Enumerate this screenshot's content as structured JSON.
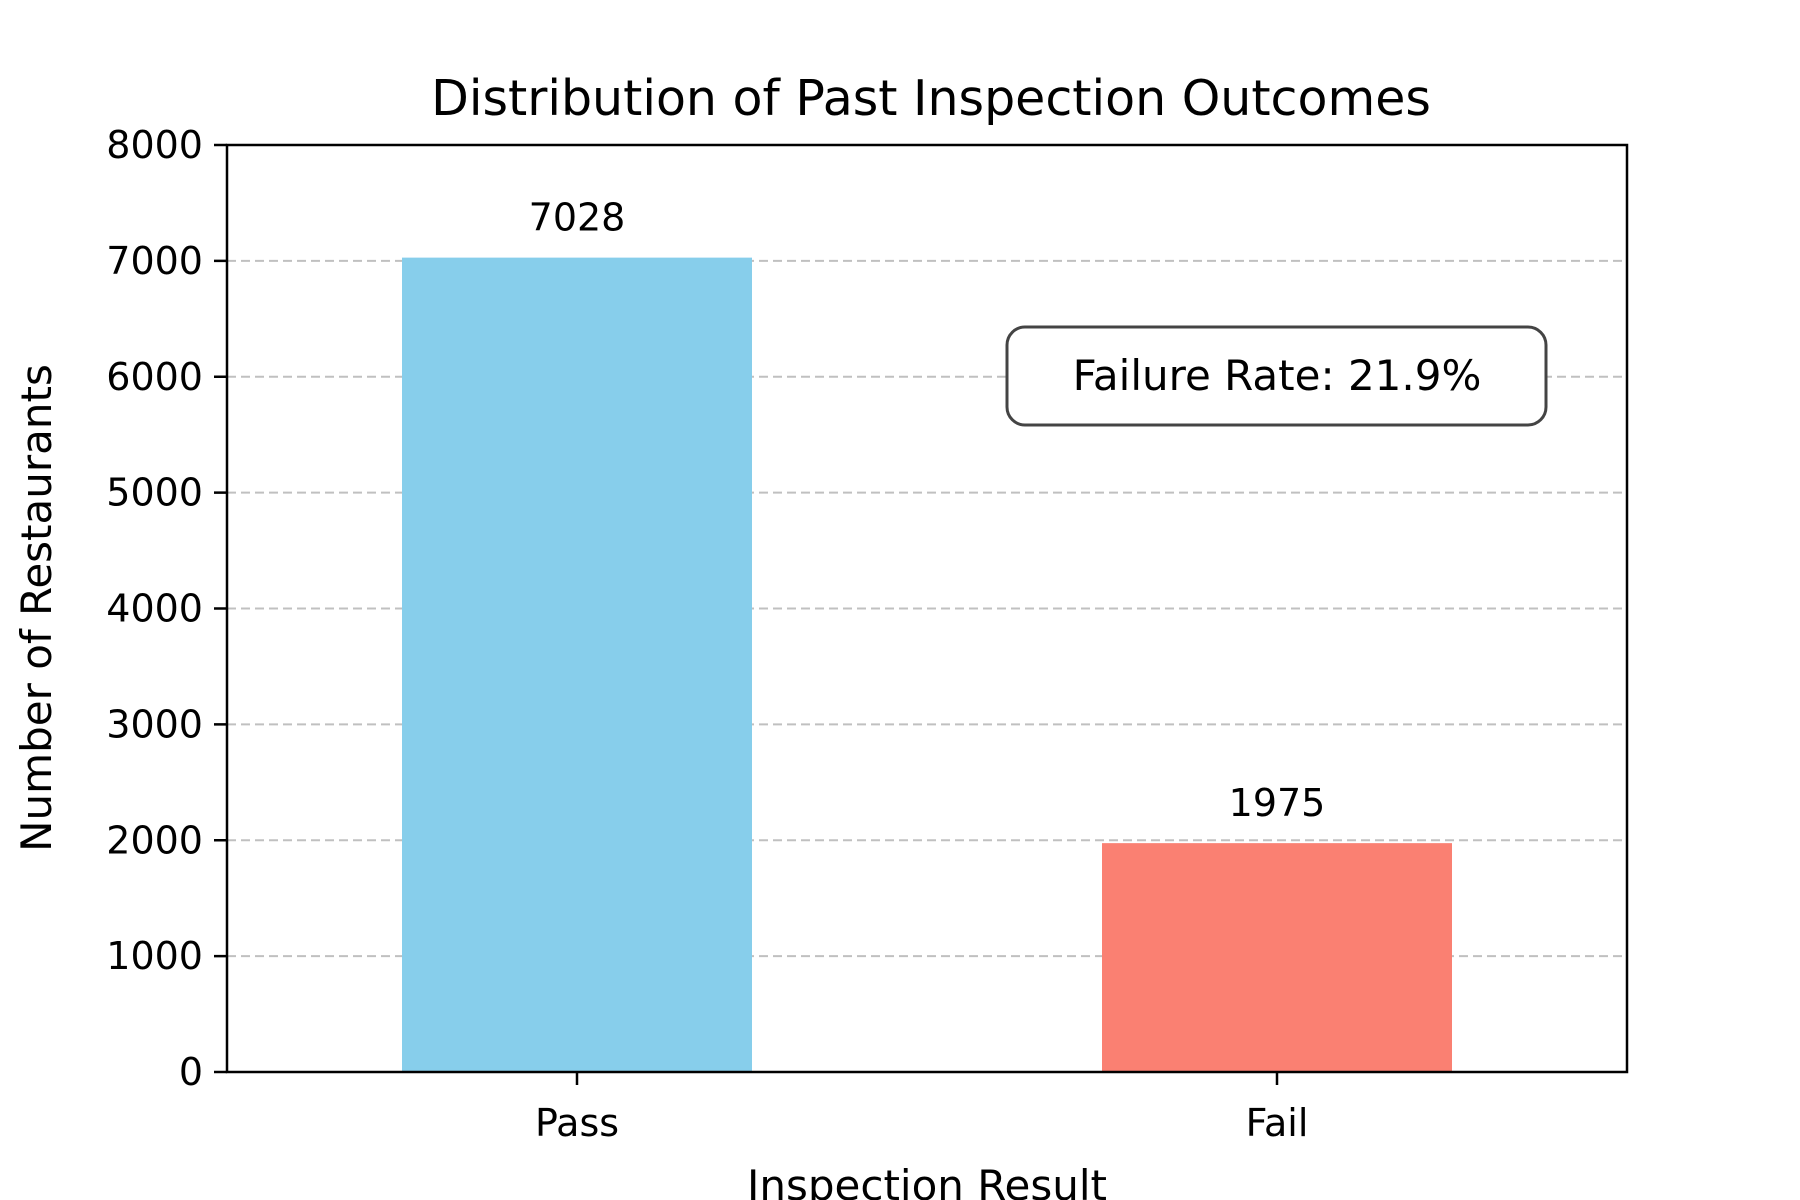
{
  "chart_data": {
    "type": "bar",
    "title": "Distribution of Past Inspection Outcomes",
    "xlabel": "Inspection Result",
    "ylabel": "Number of Restaurants",
    "categories": [
      "Pass",
      "Fail"
    ],
    "values": [
      7028,
      1975
    ],
    "value_labels": [
      "7028",
      "1975"
    ],
    "bar_colors": [
      "#87ceeb",
      "#fa8072"
    ],
    "ylim": [
      0,
      8000
    ],
    "yticks": [
      0,
      1000,
      2000,
      3000,
      4000,
      5000,
      6000,
      7000,
      8000
    ],
    "ytick_labels": [
      "0",
      "1000",
      "2000",
      "3000",
      "4000",
      "5000",
      "6000",
      "7000",
      "8000"
    ],
    "grid": {
      "axis": "y",
      "style": "dashed",
      "color": "#c0c0c0"
    },
    "annotation": {
      "text": "Failure Rate: 21.9%",
      "placement": "upper-right",
      "y_value": 6000
    }
  }
}
